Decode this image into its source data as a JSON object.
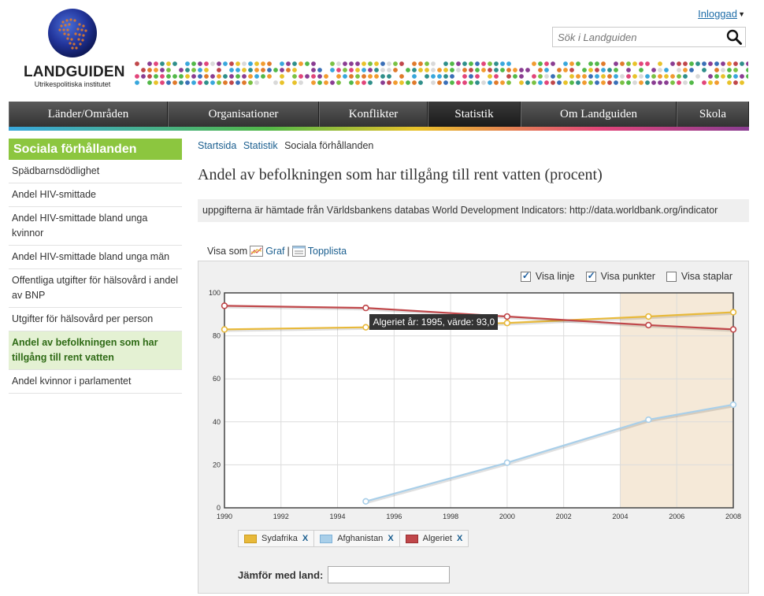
{
  "header": {
    "logo_name": "LANDGUIDEN",
    "logo_subtitle": "Utrikespolitiska institutet",
    "login_label": "Inloggad",
    "search_placeholder": "Sök i Landguiden"
  },
  "nav": {
    "items": [
      {
        "label": "Länder/Områden"
      },
      {
        "label": "Organisationer"
      },
      {
        "label": "Konflikter"
      },
      {
        "label": "Statistik"
      },
      {
        "label": "Om Landguiden"
      },
      {
        "label": "Skola"
      }
    ],
    "active_index": 3
  },
  "sidebar": {
    "title": "Sociala förhållanden",
    "items": [
      {
        "label": "Spädbarnsdödlighet"
      },
      {
        "label": "Andel HIV-smittade"
      },
      {
        "label": "Andel HIV-smittade bland unga kvinnor"
      },
      {
        "label": "Andel HIV-smittade bland unga män"
      },
      {
        "label": "Offentliga utgifter för hälsovård i andel av BNP"
      },
      {
        "label": "Utgifter för hälsovård per person"
      },
      {
        "label": "Andel av befolkningen som har tillgång till rent vatten"
      },
      {
        "label": "Andel kvinnor i parlamentet"
      }
    ],
    "active_index": 6
  },
  "breadcrumb": {
    "items": [
      "Startsida",
      "Statistik"
    ],
    "current": "Sociala förhållanden"
  },
  "main": {
    "title": "Andel av befolkningen som har tillgång till rent vatten (procent)",
    "source_text": "uppgifterna är hämtade från Världsbankens databas World Development Indicators: http://data.worldbank.org/indicator",
    "view_as": {
      "label": "Visa som",
      "graph": "Graf",
      "separator": "|",
      "toplist": "Topplista"
    },
    "options": [
      {
        "label": "Visa linje",
        "checked": true
      },
      {
        "label": "Visa punkter",
        "checked": true
      },
      {
        "label": "Visa staplar",
        "checked": false
      }
    ],
    "compare_label": "Jämför med land:",
    "remove_label": "X"
  },
  "tooltip": {
    "text": "Algeriet år: 1995, värde: 93,0",
    "series": "Algeriet",
    "year": 1995
  },
  "chart_data": {
    "type": "line",
    "title": "",
    "xlabel": "",
    "ylabel": "",
    "xlim": [
      1990,
      2008
    ],
    "ylim": [
      0,
      100
    ],
    "x_ticks": [
      1990,
      1992,
      1994,
      1996,
      1998,
      2000,
      2002,
      2004,
      2006,
      2008
    ],
    "y_ticks": [
      0,
      20,
      40,
      60,
      80,
      100
    ],
    "highlight_range": [
      2004,
      2008
    ],
    "grid": true,
    "legend_position": "bottom-left",
    "series": [
      {
        "name": "Sydafrika",
        "color": "#e8b93a",
        "x": [
          1990,
          1995,
          2000,
          2005,
          2008
        ],
        "y": [
          83,
          84,
          86,
          89,
          91
        ]
      },
      {
        "name": "Afghanistan",
        "color": "#a9cfe9",
        "x": [
          1995,
          2000,
          2005,
          2008
        ],
        "y": [
          3,
          21,
          41,
          48
        ]
      },
      {
        "name": "Algeriet",
        "color": "#c0474a",
        "x": [
          1990,
          1995,
          2000,
          2005,
          2008
        ],
        "y": [
          94,
          93,
          89,
          85,
          83
        ]
      }
    ]
  }
}
